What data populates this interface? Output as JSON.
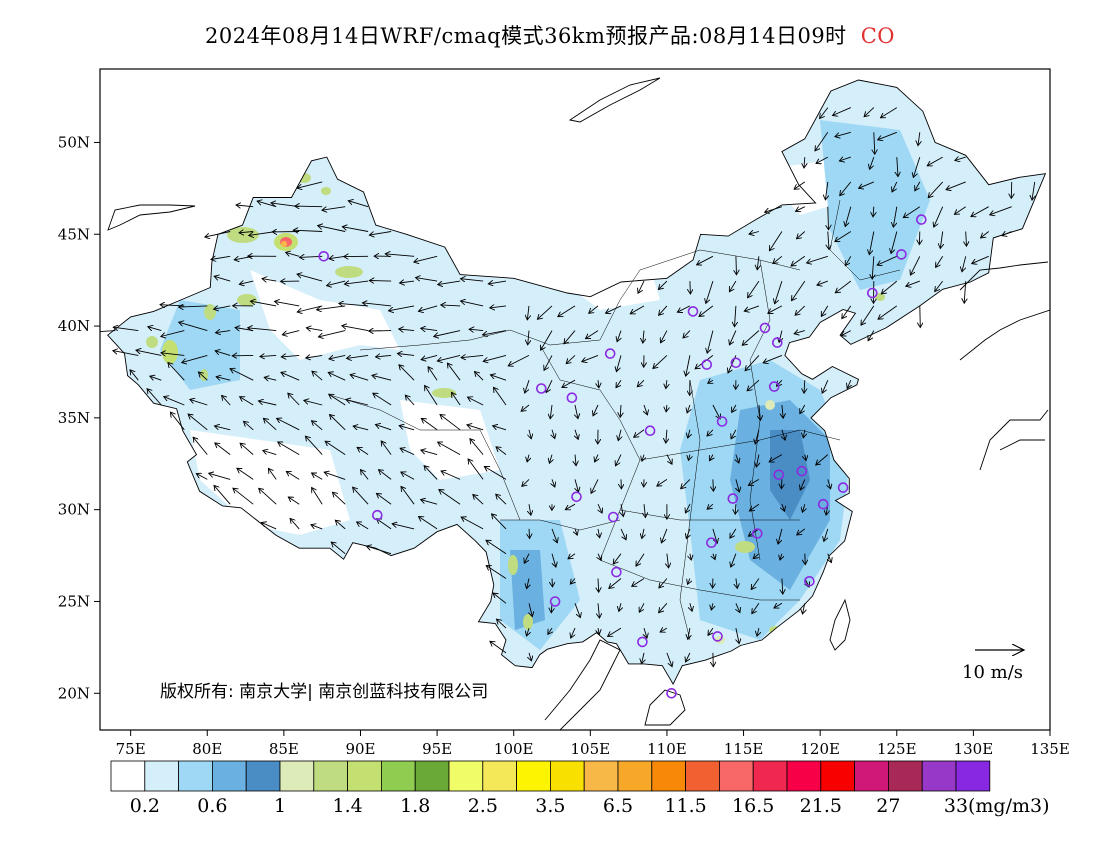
{
  "title": {
    "text": "2024年08月14日WRF/cmaq模式36km预报产品:08月14日09时",
    "species": "CO"
  },
  "map": {
    "lon_range": [
      73,
      135
    ],
    "lat_range": [
      18,
      54
    ],
    "x_ticks": [
      {
        "lon": 75,
        "label": "75E"
      },
      {
        "lon": 80,
        "label": "80E"
      },
      {
        "lon": 85,
        "label": "85E"
      },
      {
        "lon": 90,
        "label": "90E"
      },
      {
        "lon": 95,
        "label": "95E"
      },
      {
        "lon": 100,
        "label": "100E"
      },
      {
        "lon": 105,
        "label": "105E"
      },
      {
        "lon": 110,
        "label": "110E"
      },
      {
        "lon": 115,
        "label": "115E"
      },
      {
        "lon": 120,
        "label": "120E"
      },
      {
        "lon": 125,
        "label": "125E"
      },
      {
        "lon": 130,
        "label": "130E"
      },
      {
        "lon": 135,
        "label": "135E"
      }
    ],
    "y_ticks": [
      {
        "lat": 20,
        "label": "20N"
      },
      {
        "lat": 25,
        "label": "25N"
      },
      {
        "lat": 30,
        "label": "30N"
      },
      {
        "lat": 35,
        "label": "35N"
      },
      {
        "lat": 40,
        "label": "40N"
      },
      {
        "lat": 45,
        "label": "45N"
      },
      {
        "lat": 50,
        "label": "50N"
      }
    ],
    "wind_reference": "10 m/s",
    "copyright": "版权所有: 南京大学| 南京创蓝科技有限公司",
    "stations": [
      [
        87.6,
        43.8
      ],
      [
        91.1,
        29.7
      ],
      [
        101.8,
        36.6
      ],
      [
        103.8,
        36.1
      ],
      [
        106.3,
        38.5
      ],
      [
        104.1,
        30.7
      ],
      [
        106.5,
        29.6
      ],
      [
        106.7,
        26.6
      ],
      [
        108.4,
        22.8
      ],
      [
        110.3,
        20.0
      ],
      [
        102.7,
        25.0
      ],
      [
        108.9,
        34.3
      ],
      [
        111.7,
        40.8
      ],
      [
        112.6,
        37.9
      ],
      [
        114.5,
        38.0
      ],
      [
        116.4,
        39.9
      ],
      [
        117.2,
        39.1
      ],
      [
        117.0,
        36.7
      ],
      [
        113.6,
        34.8
      ],
      [
        114.3,
        30.6
      ],
      [
        112.9,
        28.2
      ],
      [
        115.9,
        28.7
      ],
      [
        117.3,
        31.9
      ],
      [
        118.8,
        32.1
      ],
      [
        120.2,
        30.3
      ],
      [
        121.5,
        31.2
      ],
      [
        119.3,
        26.1
      ],
      [
        113.3,
        23.1
      ],
      [
        123.4,
        41.8
      ],
      [
        125.3,
        43.9
      ],
      [
        126.6,
        45.8
      ]
    ]
  },
  "colorbar": {
    "colors": [
      "#ffffff",
      "#d4eefa",
      "#9fd8f4",
      "#6ab0e0",
      "#4a8cc4",
      "#dcebb8",
      "#c0dc80",
      "#c4e070",
      "#8fcc50",
      "#6aa838",
      "#f0fc68",
      "#f4e858",
      "#fcf400",
      "#f8e000",
      "#f8b848",
      "#f8a828",
      "#f88808",
      "#f06030",
      "#f86868",
      "#f02850",
      "#f80048",
      "#f80000",
      "#d01878",
      "#a82858",
      "#9838c8",
      "#8828e0"
    ],
    "labels": [
      "0.2",
      "0.6",
      "1",
      "1.4",
      "1.8",
      "2.5",
      "3.5",
      "6.5",
      "11.5",
      "16.5",
      "21.5",
      "27",
      "33"
    ],
    "unit": "(mg/m3)"
  }
}
